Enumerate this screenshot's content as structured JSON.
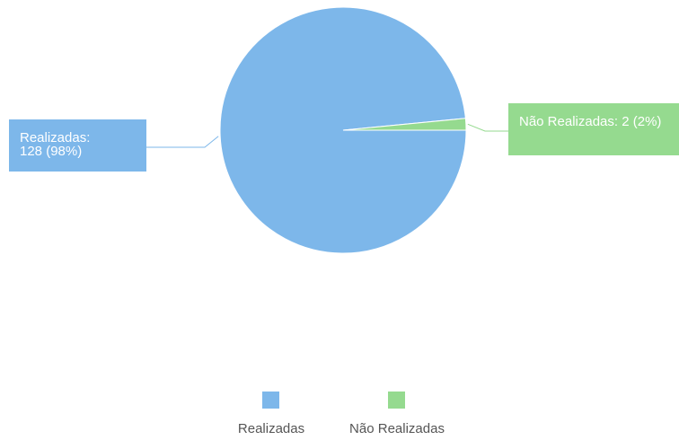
{
  "chart_data": {
    "type": "pie",
    "categories": [
      "Realizadas",
      "Não Realizadas"
    ],
    "values": [
      128,
      2
    ],
    "value_labels": [
      "Realizadas: 128 (98%)",
      "Não Realizadas: 2 (2%)"
    ],
    "colors": [
      "#7db7ea",
      "#95da8f"
    ],
    "legend": "bottom"
  }
}
